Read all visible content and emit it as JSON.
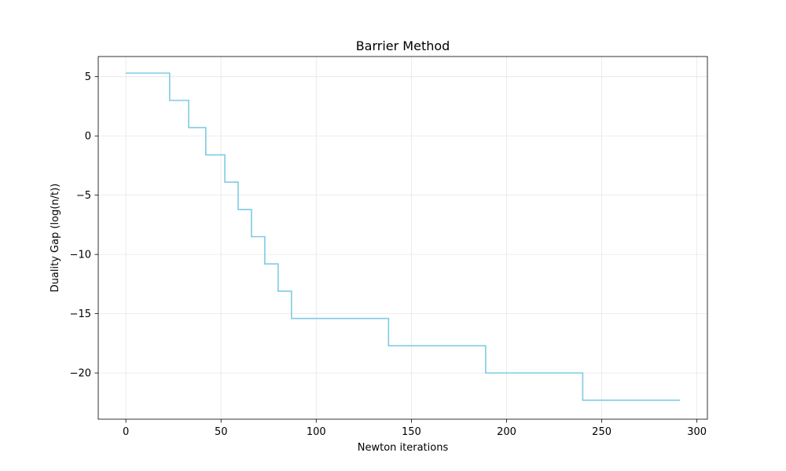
{
  "chart_data": {
    "type": "line",
    "title": "Barrier Method",
    "xlabel": "Newton iterations",
    "ylabel": "Duality Gap (log(n/t))",
    "xlim": [
      -14.5,
      305.5
    ],
    "ylim": [
      -23.9,
      6.7
    ],
    "xticks": [
      0,
      50,
      100,
      150,
      200,
      250,
      300
    ],
    "yticks": [
      5,
      0,
      -5,
      -10,
      -15,
      -20
    ],
    "xtick_labels": [
      "0",
      "50",
      "100",
      "150",
      "200",
      "250",
      "300"
    ],
    "ytick_labels": [
      "5",
      "0",
      "−5",
      "−10",
      "−15",
      "−20"
    ],
    "grid": true,
    "step": "post",
    "series": [
      {
        "color": "#7ecbe4",
        "x": [
          0,
          23,
          33,
          42,
          52,
          59,
          66,
          73,
          80,
          87,
          138,
          189,
          240,
          291
        ],
        "y": [
          5.3,
          3.0,
          0.7,
          -1.6,
          -3.9,
          -6.2,
          -8.5,
          -10.8,
          -13.1,
          -15.4,
          -17.7,
          -20.0,
          -22.3,
          -22.3
        ]
      }
    ]
  }
}
